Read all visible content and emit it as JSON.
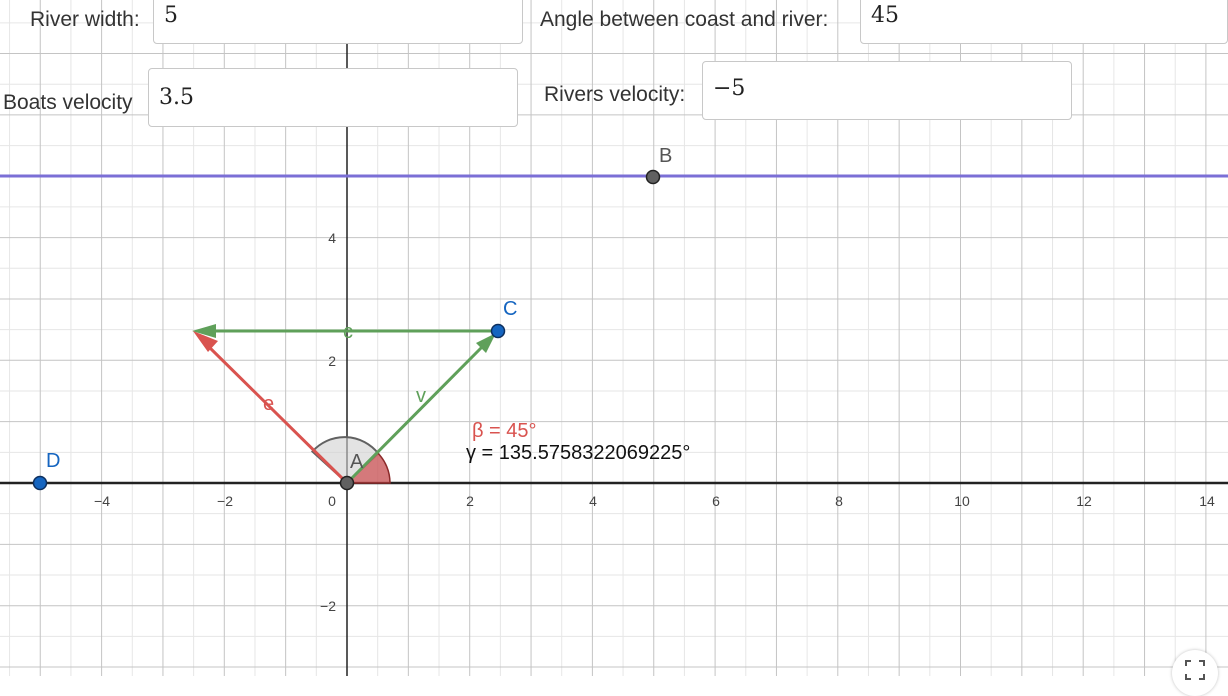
{
  "inputs": {
    "river_width": {
      "label": "River width:",
      "value": "5"
    },
    "angle": {
      "label": "Angle between coast and river:",
      "value": "45"
    },
    "boats_velocity": {
      "label": "Boats velocity",
      "value": "3.5"
    },
    "rivers_velocity": {
      "label": "Rivers velocity:",
      "value": "−5"
    }
  },
  "graph": {
    "x_ticks": [
      "−4",
      "−2",
      "0",
      "2",
      "4",
      "6",
      "8",
      "10",
      "12",
      "14"
    ],
    "y_ticks": [
      "4",
      "2",
      "−2"
    ],
    "points": {
      "A": "A",
      "B": "B",
      "C": "C",
      "D": "D"
    },
    "vectors": {
      "c": "c",
      "v": "v",
      "e": "e"
    },
    "beta_label": "β = 45°",
    "gamma_label": "γ = 135.5758322069225°"
  },
  "colors": {
    "river_line": "#7b6fd6",
    "vector_green": "#5fa05a",
    "vector_red": "#d9534f",
    "point_blue": "#1565c0",
    "point_gray": "#616161",
    "axis": "#222222"
  },
  "icons": {
    "fullscreen": "fullscreen-icon"
  }
}
